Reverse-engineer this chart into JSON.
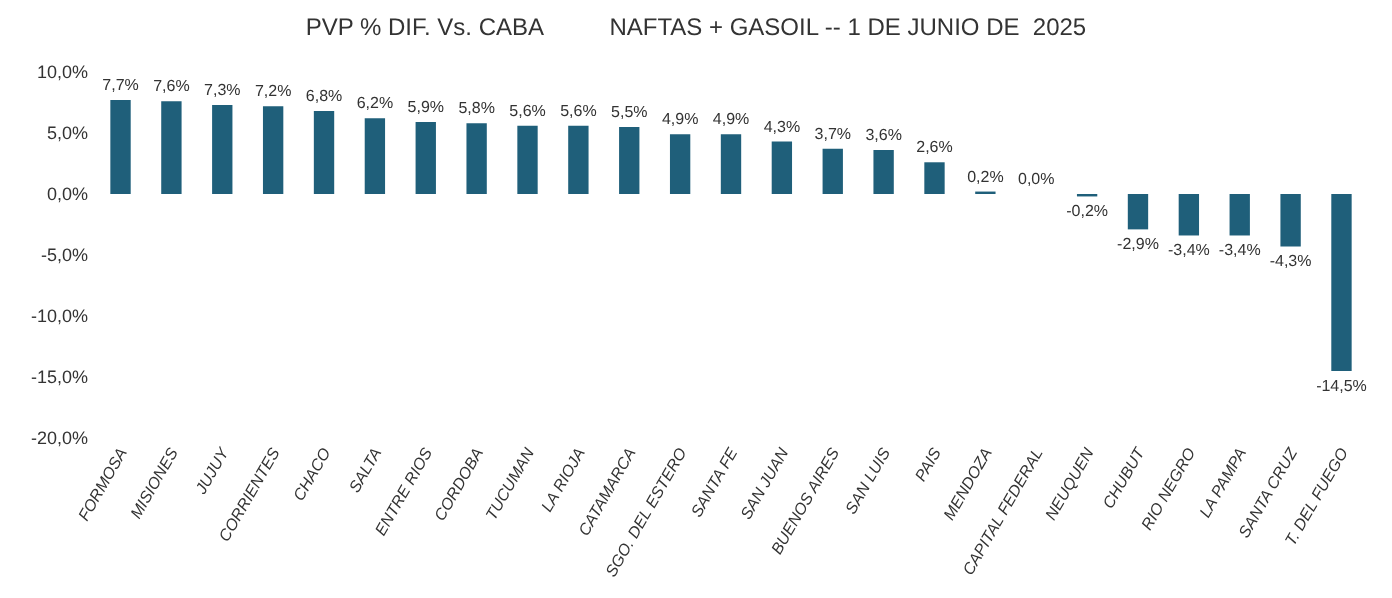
{
  "chart_data": {
    "type": "bar",
    "title": "PVP % DIF. Vs. CABA          NAFTAS + GASOIL -- 1 DE JUNIO DE  2025",
    "categories": [
      "FORMOSA",
      "MISIONES",
      "JUJUY",
      "CORRIENTES",
      "CHACO",
      "SALTA",
      "ENTRE RIOS",
      "CORDOBA",
      "TUCUMAN",
      "LA RIOJA",
      "CATAMARCA",
      "SGO. DEL ESTERO",
      "SANTA FE",
      "SAN JUAN",
      "BUENOS AIRES",
      "SAN LUIS",
      "PAIS",
      "MENDOZA",
      "CAPITAL FEDERAL",
      "NEUQUEN",
      "CHUBUT",
      "RIO NEGRO",
      "LA PAMPA",
      "SANTA CRUZ",
      "T. DEL FUEGO"
    ],
    "values": [
      7.7,
      7.6,
      7.3,
      7.2,
      6.8,
      6.2,
      5.9,
      5.8,
      5.6,
      5.6,
      5.5,
      4.9,
      4.9,
      4.3,
      3.7,
      3.6,
      2.6,
      0.2,
      0.0,
      -0.2,
      -2.9,
      -3.4,
      -3.4,
      -4.3,
      -14.5
    ],
    "value_labels": [
      "7,7%",
      "7,6%",
      "7,3%",
      "7,2%",
      "6,8%",
      "6,2%",
      "5,9%",
      "5,8%",
      "5,6%",
      "5,6%",
      "5,5%",
      "4,9%",
      "4,9%",
      "4,3%",
      "3,7%",
      "3,6%",
      "2,6%",
      "0,2%",
      "0,0%",
      "-0,2%",
      "-2,9%",
      "-3,4%",
      "-3,4%",
      "-4,3%",
      "-14,5%"
    ],
    "color": "#1f5f7a",
    "ylim": [
      -20,
      10
    ],
    "yticks": [
      {
        "value": 10,
        "label": "10,0%"
      },
      {
        "value": 5,
        "label": "5,0%"
      },
      {
        "value": 0,
        "label": "0,0%"
      },
      {
        "value": -5,
        "label": "-5,0%"
      },
      {
        "value": -10,
        "label": "-10,0%"
      },
      {
        "value": -15,
        "label": "-15,0%"
      },
      {
        "value": -20,
        "label": "-20,0%"
      }
    ],
    "grid": false,
    "legend": false
  }
}
